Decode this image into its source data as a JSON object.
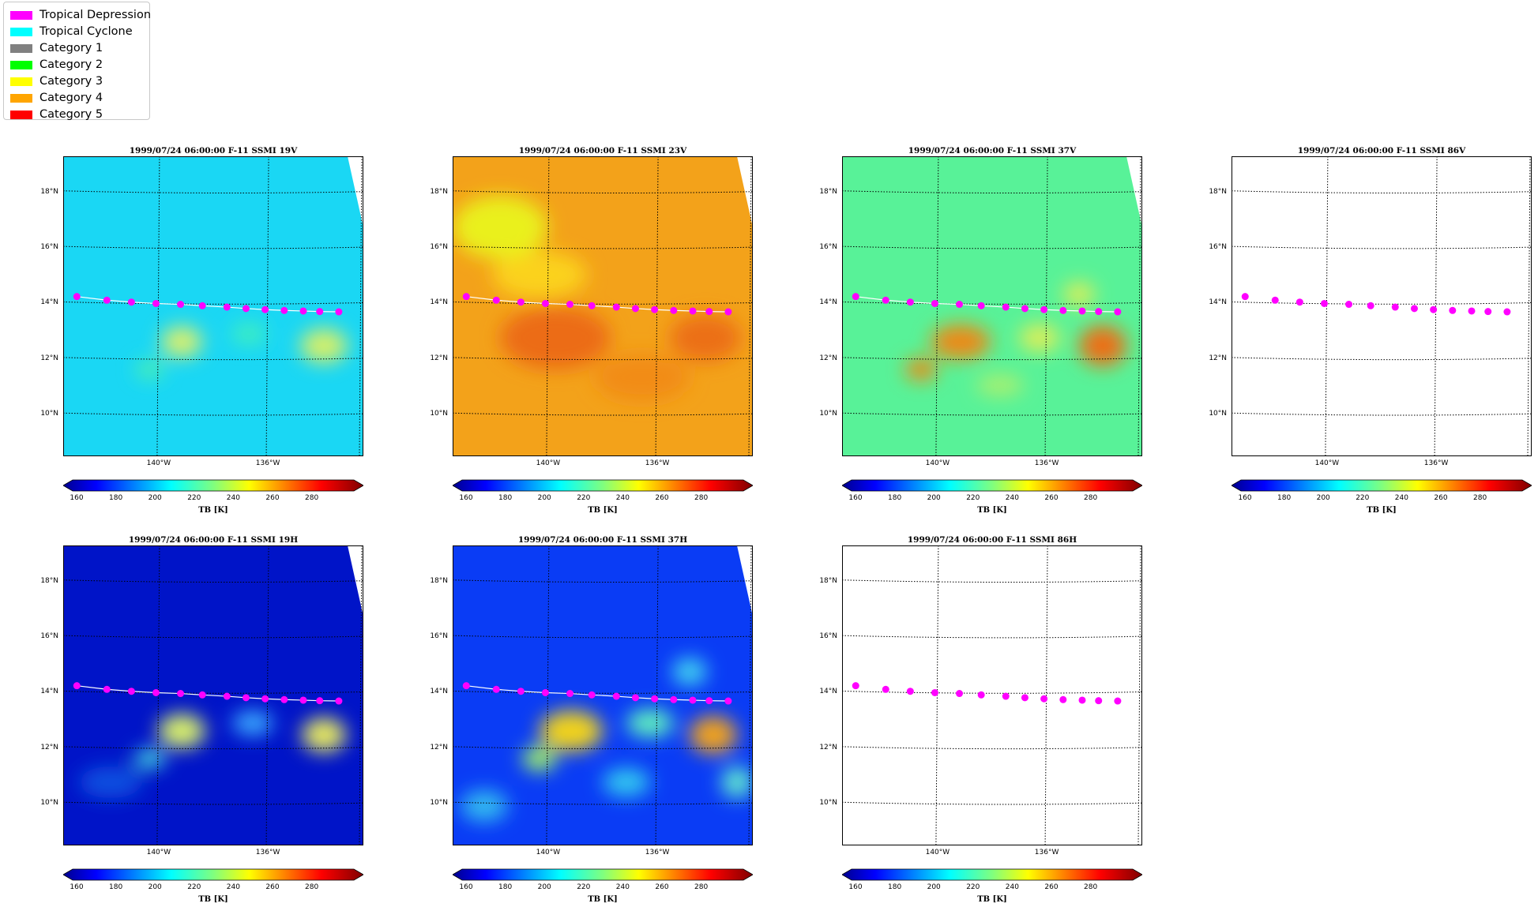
{
  "legend": {
    "items": [
      {
        "label": "Tropical Depression",
        "color": "#ff00ff"
      },
      {
        "label": "Tropical Cyclone",
        "color": "#00ffff"
      },
      {
        "label": "Category 1",
        "color": "#808080"
      },
      {
        "label": "Category 2",
        "color": "#00ff00"
      },
      {
        "label": "Category 3",
        "color": "#ffff00"
      },
      {
        "label": "Category 4",
        "color": "#ffa500"
      },
      {
        "label": "Category 5",
        "color": "#ff0000"
      }
    ]
  },
  "lat_labels": [
    "18°N",
    "16°N",
    "14°N",
    "12°N",
    "10°N"
  ],
  "lon_labels": [
    "140°W",
    "136°W"
  ],
  "colorbar": {
    "ticks": [
      "160",
      "180",
      "200",
      "220",
      "240",
      "260",
      "280"
    ],
    "label": "TB [K]",
    "colormap": "jet"
  },
  "track": {
    "color": "#ff00ff",
    "points_lon": [
      -143.0,
      -141.9,
      -141.0,
      -140.1,
      -139.2,
      -138.4,
      -137.5,
      -136.8,
      -136.1,
      -135.4,
      -134.7,
      -134.1,
      -133.4
    ],
    "points_lat": [
      14.25,
      14.12,
      14.05,
      14.0,
      13.97,
      13.92,
      13.87,
      13.82,
      13.78,
      13.75,
      13.73,
      13.71,
      13.7
    ]
  },
  "panels": [
    {
      "title": "1999/07/24 06:00:00  F-11 SSMI 19V",
      "variant": "v19"
    },
    {
      "title": "1999/07/24 06:00:00  F-11 SSMI 23V",
      "variant": "v23"
    },
    {
      "title": "1999/07/24 06:00:00  F-11 SSMI 37V",
      "variant": "v37"
    },
    {
      "title": "1999/07/24 06:00:00  F-11 SSMI 86V",
      "variant": "empty"
    },
    {
      "title": "1999/07/24 06:00:00  F-11 SSMI 19H",
      "variant": "h19"
    },
    {
      "title": "1999/07/24 06:00:00  F-11 SSMI 37H",
      "variant": "h37"
    },
    {
      "title": "1999/07/24 06:00:00  F-11 SSMI 86H",
      "variant": "empty"
    }
  ]
}
